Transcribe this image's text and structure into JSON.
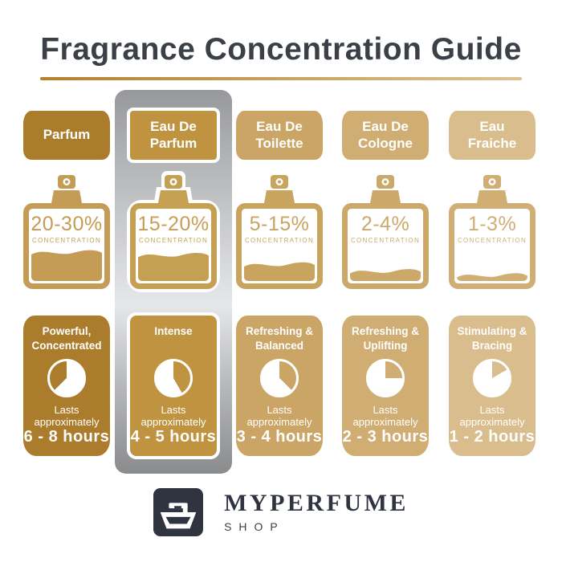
{
  "title": "Fragrance Concentration Guide",
  "columns": [
    {
      "label": "Parfum",
      "concentration": "20-30%",
      "concentration_label": "CONCENTRATION",
      "fill_percent": 44,
      "description": "Powerful,\nConcentrated",
      "lasts_label": "Lasts\napproximately",
      "duration": "6 - 8 hours",
      "clock_start_deg": 225,
      "clock_end_deg": 360,
      "theme_color": "#ab7c2b",
      "bottle_color": "#c49c55",
      "highlighted": false
    },
    {
      "label": "Eau De\nParfum",
      "concentration": "15-20%",
      "concentration_label": "CONCENTRATION",
      "fill_percent": 40,
      "description": "Intense",
      "lasts_label": "Lasts\napproximately",
      "duration": "4 - 5 hours",
      "clock_start_deg": 0,
      "clock_end_deg": 150,
      "theme_color": "#bf9340",
      "bottle_color": "#c59f52",
      "highlighted": true
    },
    {
      "label": "Eau De\nToilette",
      "concentration": "5-15%",
      "concentration_label": "CONCENTRATION",
      "fill_percent": 26,
      "description": "Refreshing &\nBalanced",
      "lasts_label": "Lasts\napproximately",
      "duration": "3 - 4 hours",
      "clock_start_deg": 0,
      "clock_end_deg": 135,
      "theme_color": "#cba565",
      "bottle_color": "#c9a45f",
      "highlighted": false
    },
    {
      "label": "Eau De\nCologne",
      "concentration": "2-4%",
      "concentration_label": "CONCENTRATION",
      "fill_percent": 16,
      "description": "Refreshing &\nUplifting",
      "lasts_label": "Lasts\napproximately",
      "duration": "2 - 3 hours",
      "clock_start_deg": 0,
      "clock_end_deg": 90,
      "theme_color": "#d0ad72",
      "bottle_color": "#cca96a",
      "highlighted": false
    },
    {
      "label": "Eau\nFraiche",
      "concentration": "1-3%",
      "concentration_label": "CONCENTRATION",
      "fill_percent": 10,
      "description": "Stimulating &\nBracing",
      "lasts_label": "Lasts\napproximately",
      "duration": "1 - 2 hours",
      "clock_start_deg": 0,
      "clock_end_deg": 60,
      "theme_color": "#d9bd8c",
      "bottle_color": "#d0ae74",
      "highlighted": false
    }
  ],
  "colors": {
    "title": "#3b4047",
    "underline_start": "#b3802d",
    "underline_end": "#dcc392",
    "highlight_silver": "#d6d7d9",
    "footer_dark": "#2f3440",
    "background": "#ffffff"
  },
  "footer": {
    "brand": "MYPERFUME",
    "sub_brand": "SHOP"
  }
}
